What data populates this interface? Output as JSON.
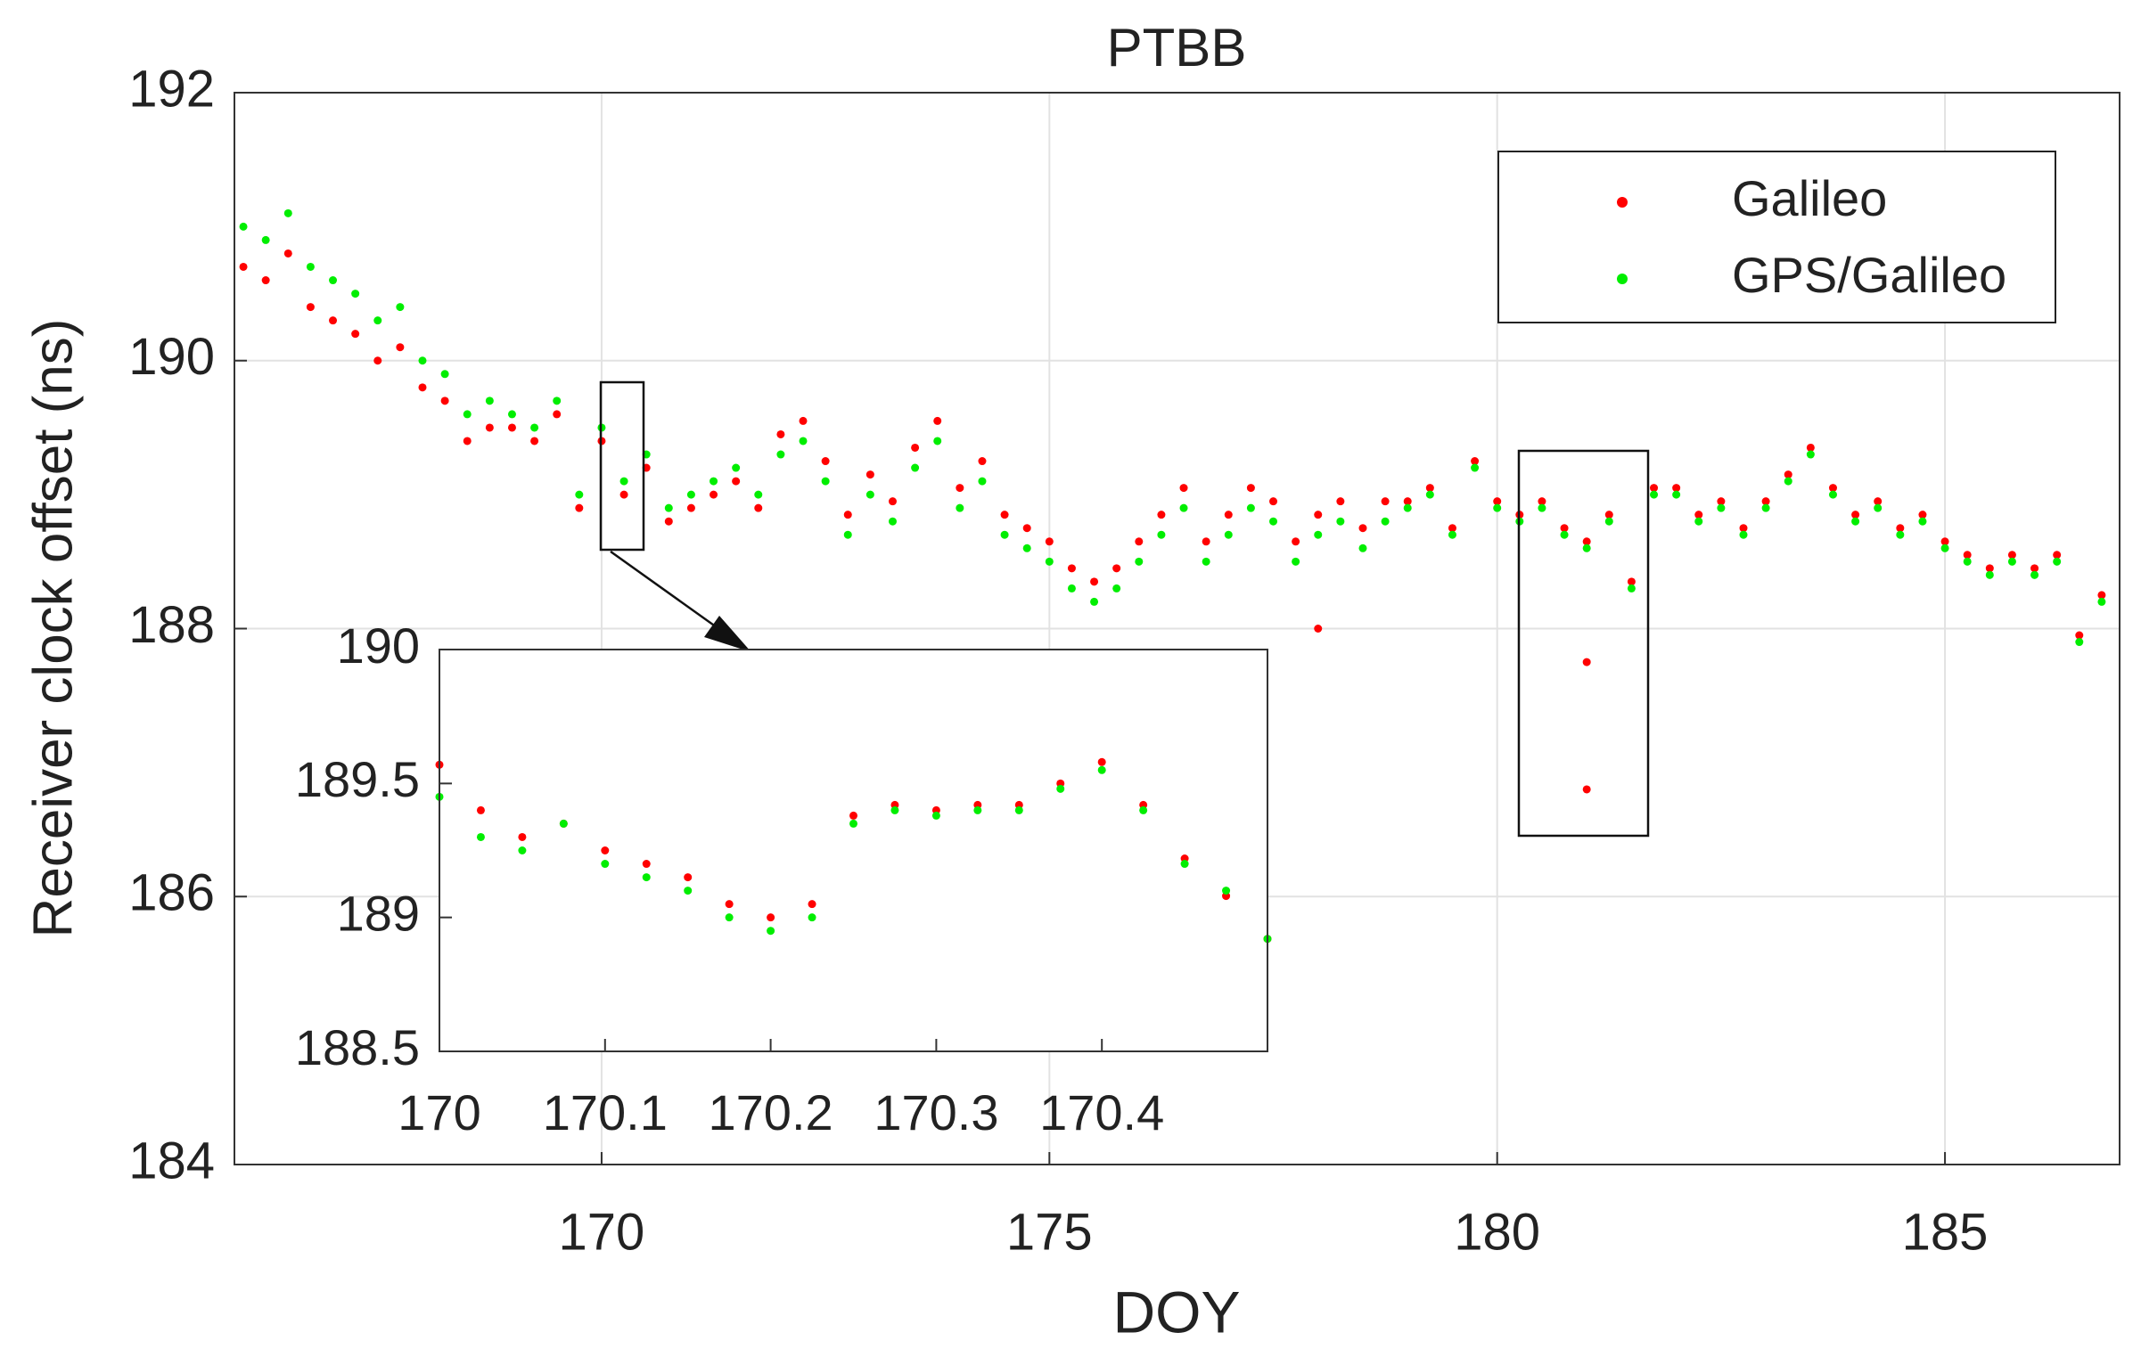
{
  "chart_data": [
    {
      "type": "scatter",
      "title": "PTBB",
      "xlabel": "DOY",
      "ylabel": "Receiver clock offset (ns)",
      "xlim": [
        165.9,
        186.95
      ],
      "ylim": [
        184,
        192
      ],
      "xticks": [
        170,
        175,
        180,
        185
      ],
      "yticks": [
        184,
        186,
        188,
        190,
        192
      ],
      "grid": true,
      "legend": "upper right",
      "series": [
        {
          "name": "Galileo",
          "color": "#ff0000",
          "x": [
            166,
            166.25,
            166.5,
            166.75,
            167,
            167.25,
            167.5,
            167.75,
            168,
            168.25,
            168.5,
            168.75,
            169,
            169.25,
            169.5,
            169.75,
            170,
            170.25,
            170.5,
            170.75,
            171,
            171.25,
            171.5,
            171.75,
            172,
            172.25,
            172.5,
            172.75,
            173,
            173.25,
            173.5,
            173.75,
            174,
            174.25,
            174.5,
            174.75,
            175,
            175.25,
            175.5,
            175.75,
            176,
            176.25,
            176.5,
            176.75,
            177,
            177.25,
            177.5,
            177.75,
            178,
            178.25,
            178.5,
            178.75,
            179,
            179.25,
            179.5,
            179.75,
            180,
            180.25,
            180.5,
            180.75,
            181,
            181.25,
            181.5,
            181.75,
            182,
            182.25,
            182.5,
            182.75,
            183,
            183.25,
            183.5,
            183.75,
            184,
            184.25,
            184.5,
            184.75,
            185,
            185.25,
            185.5,
            185.75,
            186,
            186.25,
            186.5,
            186.75,
            178,
            181,
            181
          ],
          "values": [
            190.7,
            190.6,
            190.8,
            190.4,
            190.3,
            190.2,
            190.0,
            190.1,
            189.8,
            189.7,
            189.4,
            189.5,
            189.5,
            189.4,
            189.6,
            188.9,
            189.4,
            189.0,
            189.2,
            188.8,
            188.9,
            189.0,
            189.1,
            188.9,
            189.45,
            189.55,
            189.25,
            188.85,
            189.15,
            188.95,
            189.35,
            189.55,
            189.05,
            189.25,
            188.85,
            188.75,
            188.65,
            188.45,
            188.35,
            188.45,
            188.65,
            188.85,
            189.05,
            188.65,
            188.85,
            189.05,
            188.95,
            188.65,
            188.85,
            188.95,
            188.75,
            188.95,
            188.95,
            189.05,
            188.75,
            189.25,
            188.95,
            188.85,
            188.95,
            188.75,
            188.65,
            188.85,
            188.35,
            189.05,
            189.05,
            188.85,
            188.95,
            188.75,
            188.95,
            189.15,
            189.35,
            189.05,
            188.85,
            188.95,
            188.75,
            188.85,
            188.65,
            188.55,
            188.45,
            188.55,
            188.45,
            188.55,
            187.95,
            188.25,
            188.0,
            187.75,
            186.8
          ]
        },
        {
          "name": "GPS/Galileo",
          "color": "#00ee00",
          "x": [
            166,
            166.25,
            166.5,
            166.75,
            167,
            167.25,
            167.5,
            167.75,
            168,
            168.25,
            168.5,
            168.75,
            169,
            169.25,
            169.5,
            169.75,
            170,
            170.25,
            170.5,
            170.75,
            171,
            171.25,
            171.5,
            171.75,
            172,
            172.25,
            172.5,
            172.75,
            173,
            173.25,
            173.5,
            173.75,
            174,
            174.25,
            174.5,
            174.75,
            175,
            175.25,
            175.5,
            175.75,
            176,
            176.25,
            176.5,
            176.75,
            177,
            177.25,
            177.5,
            177.75,
            178,
            178.25,
            178.5,
            178.75,
            179,
            179.25,
            179.5,
            179.75,
            180,
            180.25,
            180.5,
            180.75,
            181,
            181.25,
            181.5,
            181.75,
            182,
            182.25,
            182.5,
            182.75,
            183,
            183.25,
            183.5,
            183.75,
            184,
            184.25,
            184.5,
            184.75,
            185,
            185.25,
            185.5,
            185.75,
            186,
            186.25,
            186.5,
            186.75
          ],
          "values": [
            191.0,
            190.9,
            191.1,
            190.7,
            190.6,
            190.5,
            190.3,
            190.4,
            190.0,
            189.9,
            189.6,
            189.7,
            189.6,
            189.5,
            189.7,
            189.0,
            189.5,
            189.1,
            189.3,
            188.9,
            189.0,
            189.1,
            189.2,
            189.0,
            189.3,
            189.4,
            189.1,
            188.7,
            189.0,
            188.8,
            189.2,
            189.4,
            188.9,
            189.1,
            188.7,
            188.6,
            188.5,
            188.3,
            188.2,
            188.3,
            188.5,
            188.7,
            188.9,
            188.5,
            188.7,
            188.9,
            188.8,
            188.5,
            188.7,
            188.8,
            188.6,
            188.8,
            188.9,
            189.0,
            188.7,
            189.2,
            188.9,
            188.8,
            188.9,
            188.7,
            188.6,
            188.8,
            188.3,
            189.0,
            189.0,
            188.8,
            188.9,
            188.7,
            188.9,
            189.1,
            189.3,
            189.0,
            188.8,
            188.9,
            188.7,
            188.8,
            188.6,
            188.5,
            188.4,
            188.5,
            188.4,
            188.5,
            187.9,
            188.2
          ]
        }
      ]
    },
    {
      "type": "scatter",
      "xlim": [
        170,
        170.5
      ],
      "ylim": [
        188.5,
        190
      ],
      "xticks": [
        170,
        170.1,
        170.2,
        170.3,
        170.4
      ],
      "yticks": [
        188.5,
        189,
        189.5,
        190
      ],
      "series": [
        {
          "color": "#ff0000",
          "x": [
            170,
            170.025,
            170.05,
            170.075,
            170.1,
            170.125,
            170.15,
            170.175,
            170.2,
            170.225,
            170.25,
            170.275,
            170.3,
            170.325,
            170.35,
            170.375,
            170.4,
            170.425,
            170.45,
            170.475,
            170.5
          ],
          "values": [
            189.57,
            189.4,
            189.3,
            189.35,
            189.25,
            189.2,
            189.15,
            189.05,
            189.0,
            189.05,
            189.38,
            189.42,
            189.4,
            189.42,
            189.42,
            189.5,
            189.58,
            189.42,
            189.22,
            189.08,
            188.92
          ]
        },
        {
          "color": "#00ee00",
          "x": [
            170,
            170.025,
            170.05,
            170.075,
            170.1,
            170.125,
            170.15,
            170.175,
            170.2,
            170.225,
            170.25,
            170.275,
            170.3,
            170.325,
            170.35,
            170.375,
            170.4,
            170.425,
            170.45,
            170.475,
            170.5
          ],
          "values": [
            189.45,
            189.3,
            189.25,
            189.35,
            189.2,
            189.15,
            189.1,
            189.0,
            188.95,
            189.0,
            189.35,
            189.4,
            189.38,
            189.4,
            189.4,
            189.48,
            189.55,
            189.4,
            189.2,
            189.1,
            188.92
          ]
        }
      ]
    }
  ]
}
